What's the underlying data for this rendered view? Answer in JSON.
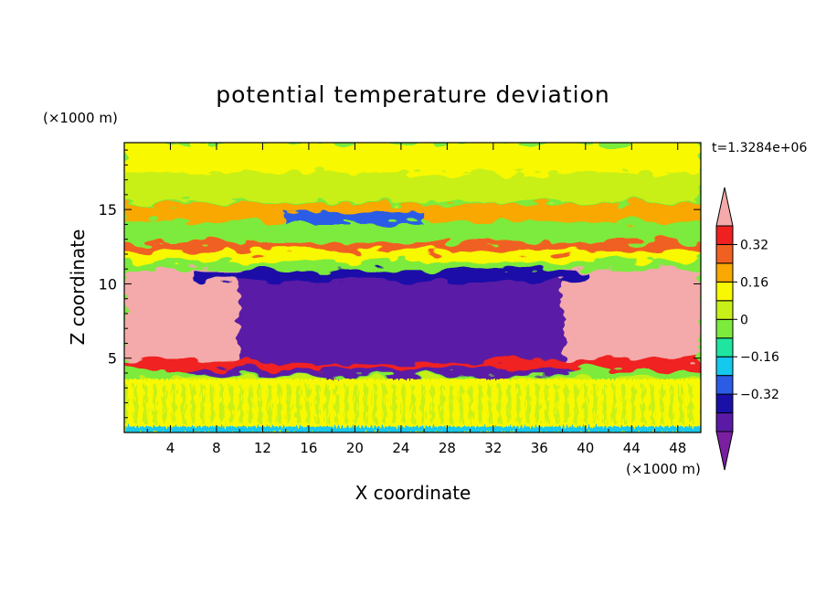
{
  "chart_data": {
    "type": "heatmap",
    "title": "potential temperature deviation",
    "xlabel": "X coordinate",
    "ylabel": "Z coordinate",
    "x_units": "(×1000 m)",
    "y_units": "(×1000 m)",
    "time_label": "t=1.3284e+06",
    "xlim": [
      0,
      50
    ],
    "ylim": [
      0,
      19.5
    ],
    "xticks": [
      4,
      8,
      12,
      16,
      20,
      24,
      28,
      32,
      36,
      40,
      44,
      48
    ],
    "yticks": [
      5,
      10,
      15
    ],
    "colorbar": {
      "levels": [
        -0.48,
        -0.4,
        -0.32,
        -0.24,
        -0.16,
        -0.08,
        0,
        0.08,
        0.16,
        0.24,
        0.32,
        0.4,
        0.48
      ],
      "labeled": [
        0.32,
        0.16,
        0,
        -0.16,
        -0.32
      ],
      "colors": [
        "#7B1FA2",
        "#5A1AA6",
        "#1A10A8",
        "#2A5CE6",
        "#14C8EE",
        "#1EE6A0",
        "#7CEB3C",
        "#C8F018",
        "#F8F800",
        "#F8A800",
        "#F06020",
        "#F02020",
        "#F4AAAA"
      ]
    },
    "regions": [
      {
        "name": "top-green",
        "x": [
          0,
          50
        ],
        "z": [
          15.5,
          19.5
        ],
        "value": 0.04
      },
      {
        "name": "upper-yellow-band",
        "x": [
          0,
          50
        ],
        "z": [
          14.2,
          15.4
        ],
        "value": 0.18
      },
      {
        "name": "upper-blue-band",
        "x": [
          14,
          26
        ],
        "z": [
          13.8,
          14.8
        ],
        "value": -0.3
      },
      {
        "name": "mid-teal-band",
        "x": [
          0,
          50
        ],
        "z": [
          13.0,
          14.0
        ],
        "value": -0.04
      },
      {
        "name": "mid-yellow-band",
        "x": [
          0,
          50
        ],
        "z": [
          11.5,
          12.8
        ],
        "value": 0.16
      },
      {
        "name": "cold-core",
        "x": [
          4,
          40
        ],
        "z": [
          3.8,
          10.8
        ],
        "value": -0.42
      },
      {
        "name": "warm-left",
        "x": [
          0,
          10
        ],
        "z": [
          4.8,
          11.0
        ],
        "value": 0.5
      },
      {
        "name": "warm-right",
        "x": [
          38,
          50
        ],
        "z": [
          4.8,
          11.0
        ],
        "value": 0.5
      },
      {
        "name": "red-band",
        "x": [
          0,
          50
        ],
        "z": [
          4.3,
          4.9
        ],
        "value": 0.38
      },
      {
        "name": "low-green",
        "x": [
          0,
          50
        ],
        "z": [
          0,
          3.7
        ],
        "value": 0.06
      }
    ]
  }
}
